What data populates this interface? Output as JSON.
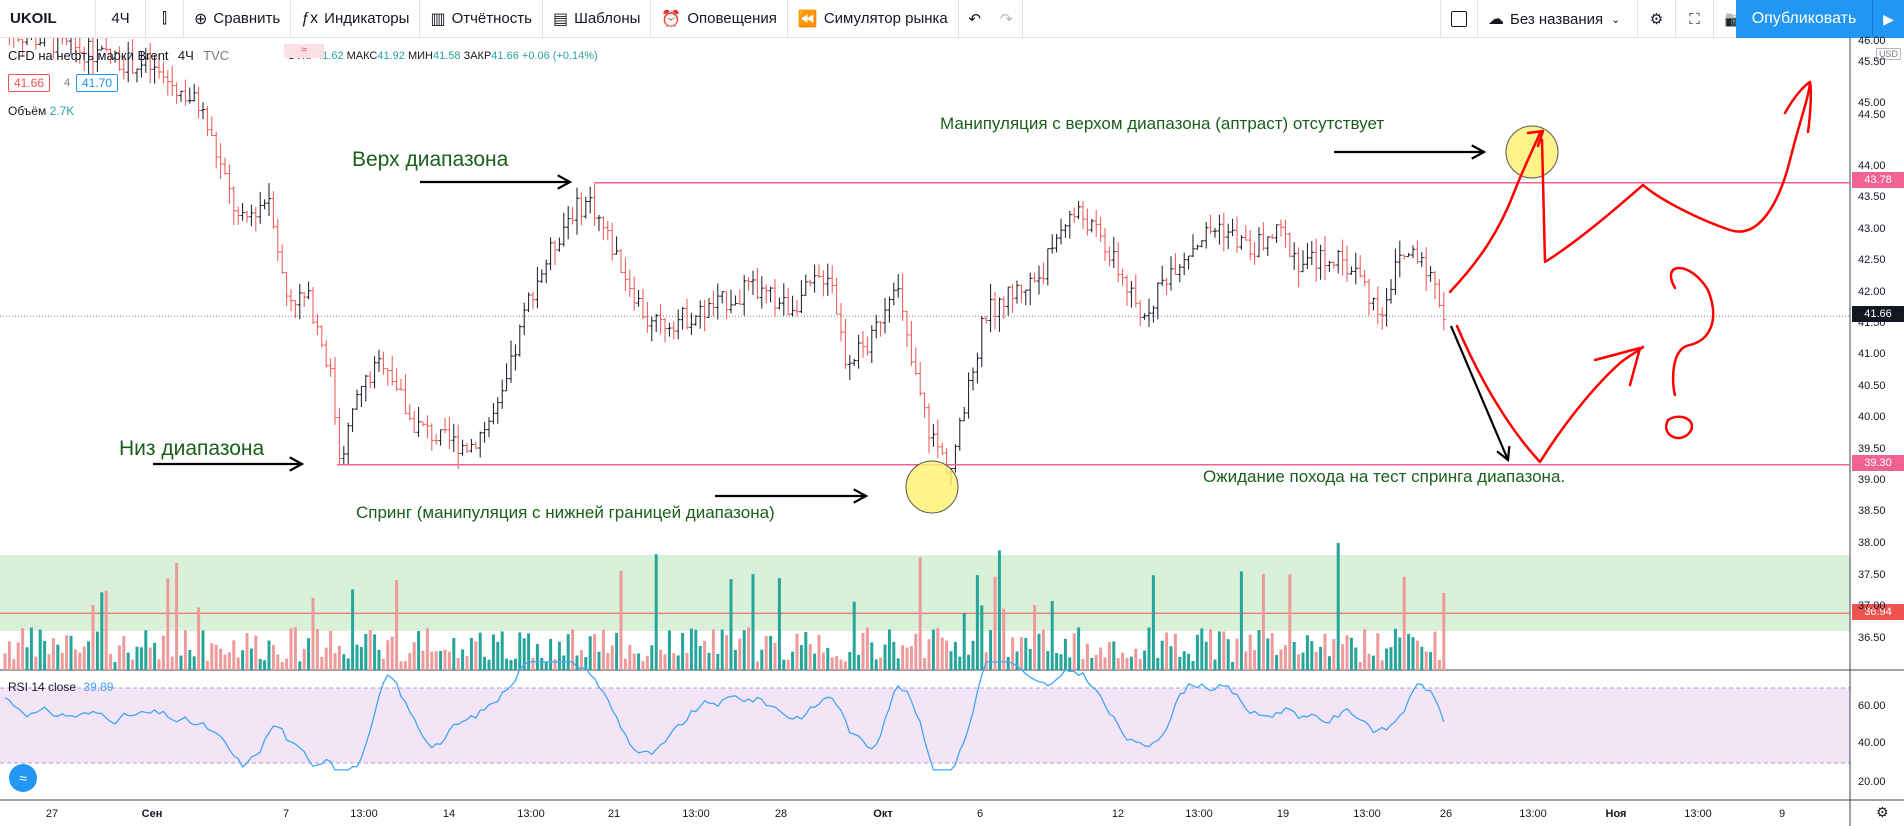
{
  "toolbar": {
    "symbol": "UKOIL",
    "interval": "4Ч",
    "compare": "Сравнить",
    "indicators": "Индикаторы",
    "financials": "Отчётность",
    "templates": "Шаблоны",
    "alerts": "Оповещения",
    "replay": "Симулятор рынка",
    "layout_name": "Без названия",
    "publish": "Опубликовать"
  },
  "legend": {
    "title": "CFD на нефть марки Brent",
    "interval": "4Ч",
    "source": "TVC",
    "open_label": "ОТКР",
    "open": "41.62",
    "high_label": "МАКС",
    "high": "41.92",
    "low_label": "МИН",
    "low": "41.58",
    "close_label": "ЗАКР",
    "close": "41.66",
    "change": "+0.06 (+0.14%)",
    "bid": "41.66",
    "spread": "4",
    "ask": "41.70",
    "volume_label": "Объём",
    "volume": "2.7K",
    "rsi_label": "RSI 14 close",
    "rsi_value": "39.89",
    "currency": "USD"
  },
  "annotations": {
    "range_top": "Верх диапазона",
    "range_bottom": "Низ диапазона",
    "upthrust": "Манипуляция с верхом диапазона (аптраст) отсутствует",
    "spring": "Спринг (манипуляция с нижней границей диапазона)",
    "expectation": "Ожидание похода на тест спринга диапазона."
  },
  "price_tags": {
    "top": "43.78",
    "current": "41.66",
    "bottom": "39.30",
    "volume_level": "36.94"
  },
  "chart_data": {
    "type": "candlestick",
    "price_axis_ticks": [
      "46.00",
      "45.50",
      "45.00",
      "44.50",
      "44.00",
      "43.50",
      "43.00",
      "42.50",
      "42.00",
      "41.50",
      "41.00",
      "40.50",
      "40.00",
      "39.50",
      "39.00",
      "38.50",
      "38.00",
      "37.50",
      "37.00",
      "36.50"
    ],
    "rsi_axis_ticks": [
      "60.00",
      "40.00",
      "20.00"
    ],
    "time_axis_labels": [
      "27",
      "Сен",
      "7",
      "13:00",
      "14",
      "13:00",
      "21",
      "13:00",
      "28",
      "Окт",
      "6",
      "12",
      "13:00",
      "19",
      "13:00",
      "26",
      "13:00",
      "Ноя",
      "13:00",
      "9"
    ],
    "range_top": 43.78,
    "range_bottom": 39.3,
    "last_price": 41.66,
    "volume_level": 36.94,
    "colors": {
      "up": "#26a69a",
      "down": "#ef5350",
      "range_line": "#f06292",
      "rsi": "#42a5f5",
      "volume_up": "#26a69a",
      "volume_down": "#ef9a9a",
      "volume_zone": "#d9f0d9",
      "rsi_zone": "#f3e5f5"
    }
  }
}
